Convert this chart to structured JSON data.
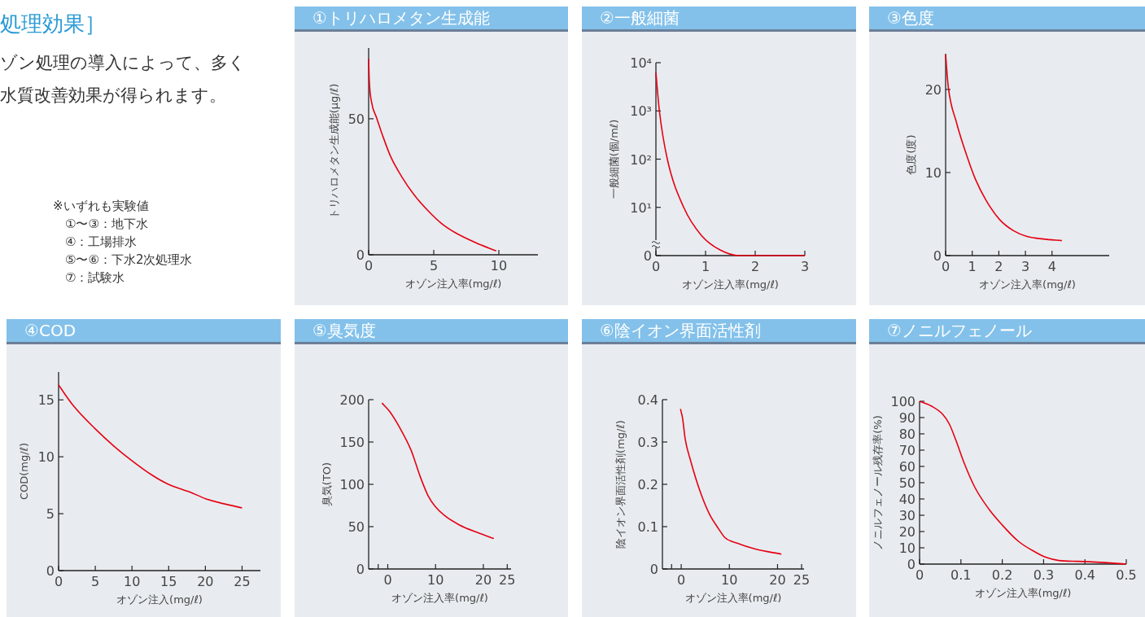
{
  "chart_data": [
    {
      "type": "other",
      "title": "処理効果］",
      "annotations": [
        "ゾン処理の導入によって、多く",
        "水質改善効果が得られます。",
        "※いずれも実験値",
        "①〜③：地下水",
        "④：工場排水",
        "⑤〜⑥：下水2次処理水",
        "⑦：試験水"
      ]
    },
    {
      "type": "line",
      "title": "①トリハロメタン生成能",
      "xlabel": "オゾン注入率(mg/ℓ)",
      "ylabel": "トリハロメタン生成能(μg/ℓ)",
      "xlim": [
        0,
        13
      ],
      "ylim": [
        0,
        76
      ],
      "xticks": [
        0,
        5,
        10
      ],
      "yticks": [
        0,
        50
      ],
      "x": [
        0,
        0.05,
        0.23,
        0.6,
        1.06,
        1.7,
        2.5,
        3.5,
        4.6,
        5.6,
        6.7,
        8.2,
        9.8
      ],
      "series": [
        {
          "color": "#e60012",
          "values": [
            72,
            64,
            56,
            50.5,
            44,
            36,
            29,
            22,
            16,
            11.5,
            8,
            4.5,
            1.4
          ]
        }
      ]
    },
    {
      "type": "line",
      "title": "②一般細菌",
      "xlabel": "オゾン注入率(mg/ℓ)",
      "ylabel": "一般細菌(個/mℓ)",
      "log": true,
      "xlim": [
        0,
        3
      ],
      "ylim": [
        0,
        10000
      ],
      "xticks": [
        0,
        1,
        2,
        3
      ],
      "yticks": [
        0,
        {
          "value": 10,
          "label": "10¹"
        },
        {
          "value": 100,
          "label": "10²"
        },
        {
          "value": 1000,
          "label": "10³"
        },
        {
          "value": 10000,
          "label": "10⁴"
        }
      ],
      "x": [
        0,
        0.07,
        0.23,
        0.56,
        0.92,
        1.3,
        1.68,
        3
      ],
      "series": [
        {
          "color": "#e60012",
          "values": [
            6200,
            1000,
            100,
            10,
            2.6,
            1.3,
            1,
            1
          ]
        }
      ]
    },
    {
      "type": "line",
      "title": "③色度",
      "xlabel": "オゾン注入率(mg/ℓ)",
      "ylabel": "色度(度)",
      "xlim": [
        0,
        6.15
      ],
      "ylim": [
        0,
        24.3
      ],
      "xticks": [
        0,
        1,
        2,
        3,
        4
      ],
      "yticks": [
        0,
        10,
        20
      ],
      "x": [
        0,
        0.1,
        0.41,
        0.82,
        1.12,
        1.53,
        2.04,
        2.55,
        3.06,
        3.67,
        4.37
      ],
      "series": [
        {
          "color": "#e60012",
          "values": [
            24.2,
            20.3,
            16,
            11.8,
            9.2,
            6.6,
            4.3,
            3.0,
            2.3,
            2.0,
            1.8
          ]
        }
      ]
    },
    {
      "type": "line",
      "title": "④COD",
      "xlabel": "オゾン注入(mg/ℓ)",
      "ylabel": "COD(mg/ℓ)",
      "xlim": [
        0,
        27.5
      ],
      "ylim": [
        0,
        17.45
      ],
      "xticks": [
        0,
        5,
        10,
        15,
        20,
        25
      ],
      "yticks": [
        0,
        5,
        10,
        15
      ],
      "x": [
        0,
        2,
        5,
        7.6,
        9.9,
        12.7,
        14.9,
        17.9,
        20.1,
        25
      ],
      "series": [
        {
          "color": "#e60012",
          "values": [
            16.3,
            14.5,
            12.45,
            10.9,
            9.7,
            8.4,
            7.6,
            6.9,
            6.3,
            5.5
          ]
        }
      ]
    },
    {
      "type": "line",
      "title": "⑤臭気度",
      "xlabel": "オゾン注入率(mg/ℓ)",
      "ylabel": "臭気(TO)",
      "xlim": [
        -4,
        25.8
      ],
      "ylim": [
        0,
        200
      ],
      "xticks": [
        {
          "value": -2,
          "label": null
        },
        0,
        10,
        20,
        25
      ],
      "yticks": [
        0,
        50,
        100,
        150,
        200
      ],
      "x": [
        -1.2,
        0.4,
        2.6,
        4.9,
        6.8,
        8.4,
        9.9,
        11.9,
        15,
        18.8,
        22.2
      ],
      "series": [
        {
          "color": "#e60012",
          "values": [
            196,
            186,
            166,
            140,
            109,
            87,
            74,
            63,
            52,
            43,
            36
          ]
        }
      ]
    },
    {
      "type": "line",
      "title": "⑥陰イオン界面活性剤",
      "xlabel": "オゾン注入率(mg/ℓ)",
      "ylabel": "陰イオン界面活性剤(mg/ℓ)",
      "xlim": [
        -3.9,
        25.5
      ],
      "ylim": [
        0,
        0.4
      ],
      "xticks": [
        {
          "value": -2,
          "label": null
        },
        0,
        10,
        20,
        25
      ],
      "yticks": [
        0,
        0.1,
        0.2,
        0.3,
        0.4
      ],
      "x": [
        -0.15,
        0.3,
        0.84,
        2.0,
        3.9,
        5.8,
        7.7,
        9.1,
        11.6,
        15.4,
        20.8
      ],
      "series": [
        {
          "color": "#e60012",
          "values": [
            0.378,
            0.355,
            0.306,
            0.254,
            0.184,
            0.131,
            0.096,
            0.074,
            0.061,
            0.047,
            0.035
          ]
        }
      ]
    },
    {
      "type": "line",
      "title": "⑦ノニルフェノール",
      "xlabel": "オゾン注入率(mg/ℓ)",
      "ylabel": "ノニルフェノール残存率(%)",
      "xlim": [
        0,
        0.5
      ],
      "ylim": [
        0,
        100
      ],
      "xticks": [
        0,
        0.1,
        0.2,
        0.3,
        0.4,
        0.5
      ],
      "yticks": [
        0,
        10,
        20,
        30,
        40,
        50,
        60,
        70,
        80,
        90,
        100
      ],
      "x": [
        0,
        0.029,
        0.056,
        0.072,
        0.088,
        0.108,
        0.134,
        0.167,
        0.2,
        0.239,
        0.279,
        0.305,
        0.337,
        0.383,
        0.429,
        0.5
      ],
      "series": [
        {
          "color": "#e60012",
          "values": [
            100,
            97,
            92,
            86,
            76,
            62,
            47,
            34,
            24,
            14,
            7.5,
            4.2,
            2.2,
            1.7,
            1.2,
            0
          ]
        }
      ]
    }
  ]
}
